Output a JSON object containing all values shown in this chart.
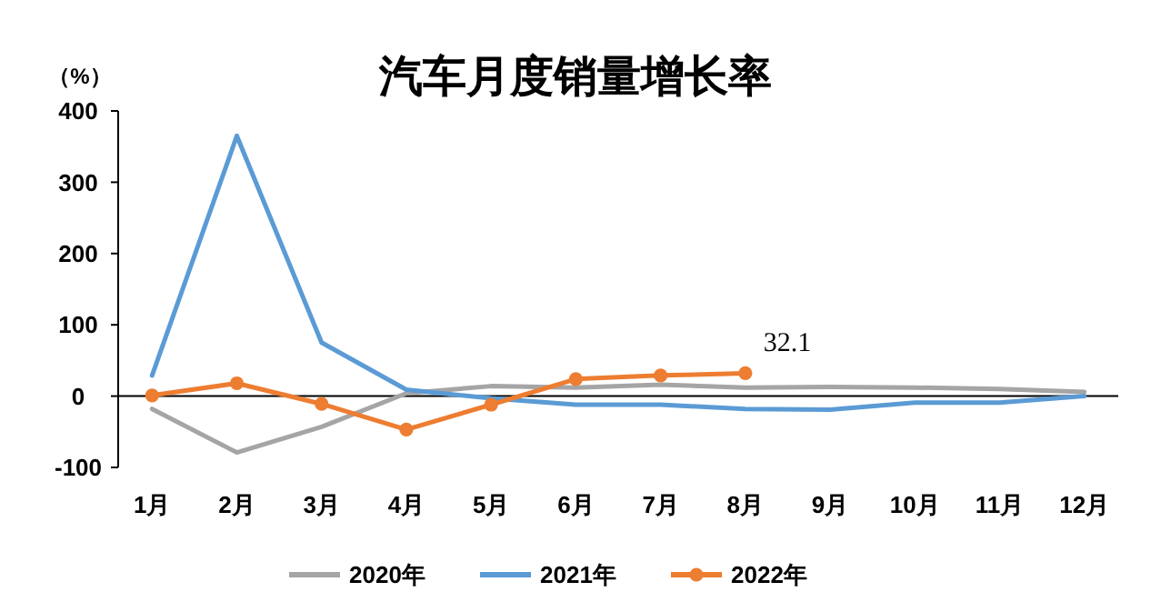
{
  "chart_data": {
    "type": "line",
    "title": "汽车月度销量增长率",
    "ylabel": "（%）",
    "categories": [
      "1月",
      "2月",
      "3月",
      "4月",
      "5月",
      "6月",
      "7月",
      "8月",
      "9月",
      "10月",
      "11月",
      "12月"
    ],
    "series": [
      {
        "name": "2020年",
        "color": "#a5a5a5",
        "marker": "none",
        "values": [
          -18,
          -79,
          -43,
          4,
          14,
          12,
          16,
          12,
          13,
          12,
          10,
          6
        ]
      },
      {
        "name": "2021年",
        "color": "#5b9bd5",
        "marker": "none",
        "values": [
          29,
          365,
          75,
          9,
          -3,
          -12,
          -12,
          -18,
          -19,
          -9,
          -9,
          0
        ]
      },
      {
        "name": "2022年",
        "color": "#ed7d31",
        "marker": "circle",
        "values": [
          1,
          18,
          -11,
          -47,
          -12,
          24,
          29,
          32.1,
          null,
          null,
          null,
          null
        ]
      }
    ],
    "ylim": [
      -100,
      400
    ],
    "yticks": [
      -100,
      0,
      100,
      200,
      300,
      400
    ],
    "legend": "bottom",
    "annotations": [
      {
        "text": "32.1",
        "x": "8月",
        "y": 32.1
      }
    ]
  }
}
